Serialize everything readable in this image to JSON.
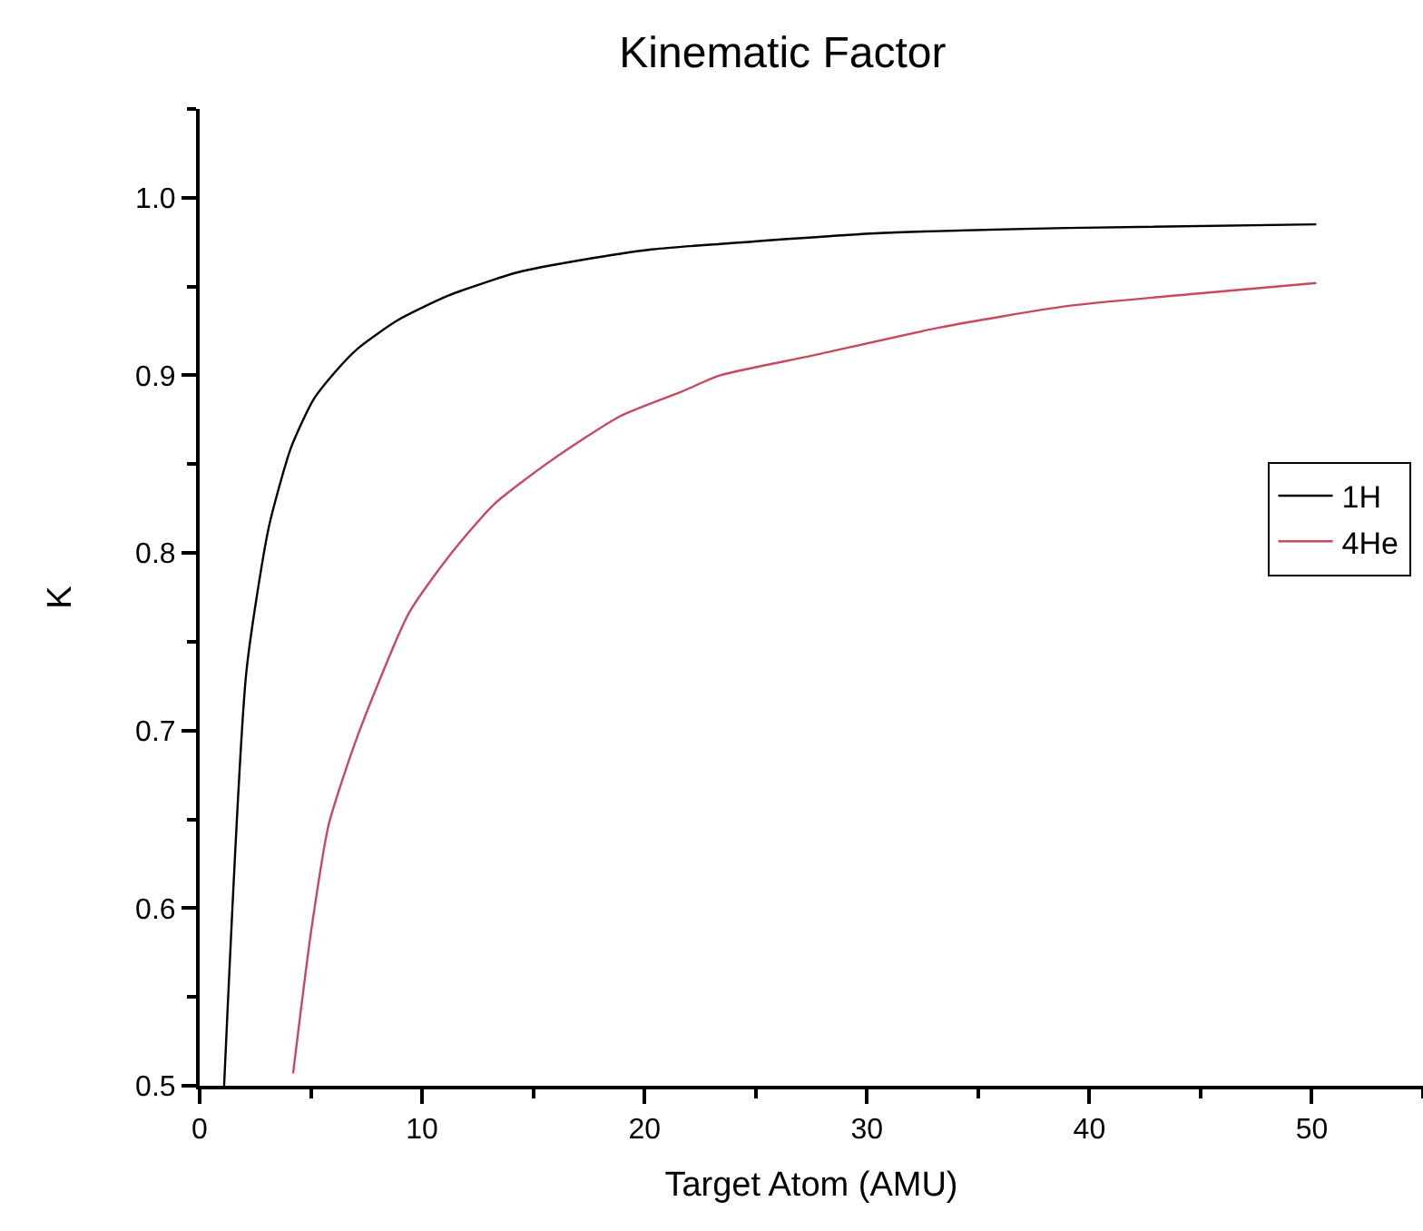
{
  "chart_data": {
    "type": "line",
    "title": "Kinematic Factor",
    "xlabel": "Target Atom (AMU)",
    "ylabel": "K",
    "xlim": [
      0,
      55
    ],
    "xticks": [
      0,
      10,
      20,
      30,
      40,
      50
    ],
    "ylim": [
      0.5,
      1.05
    ],
    "yticks": [
      0.5,
      0.6,
      0.7,
      0.8,
      0.9,
      {
        "value": 1,
        "label": "1.0"
      }
    ],
    "legend": "right",
    "marker": "none",
    "line_style": "solid",
    "series": [
      {
        "name": "1H",
        "color": "#000000",
        "x": [
          1.1,
          2.1,
          3.1,
          4.1,
          5.1,
          6.1,
          7.1,
          8.9,
          11.2,
          14.3,
          17.2,
          20.4,
          23.4,
          30.4,
          39,
          50.2
        ],
        "values": [
          0.5,
          0.733,
          0.814,
          0.859,
          0.886,
          0.902,
          0.915,
          0.931,
          0.945,
          0.958,
          0.965,
          0.971,
          0.974,
          0.98,
          0.983,
          0.985
        ]
      },
      {
        "name": "4He",
        "color": "#c8485e",
        "x": [
          4.2,
          5.0,
          5.8,
          7.1,
          9.4,
          11.2,
          13.2,
          15.8,
          18.9,
          21.7,
          23.4,
          27.5,
          33.3,
          39,
          44.8,
          50.2
        ],
        "values": [
          0.507,
          0.586,
          0.647,
          0.697,
          0.766,
          0.798,
          0.827,
          0.852,
          0.877,
          0.891,
          0.9,
          0.911,
          0.927,
          0.939,
          0.946,
          0.952
        ]
      }
    ]
  }
}
